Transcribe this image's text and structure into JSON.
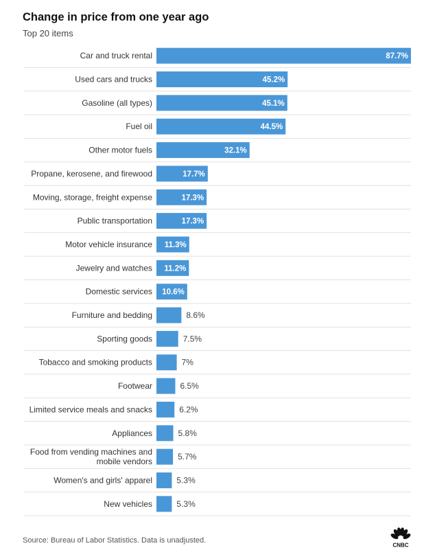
{
  "chart_data": {
    "type": "bar",
    "orientation": "horizontal",
    "title": "Change in price from one year ago",
    "subtitle": "Top 20 items",
    "categories": [
      "Car and truck rental",
      "Used cars and trucks",
      "Gasoline (all types)",
      "Fuel oil",
      "Other motor fuels",
      "Propane, kerosene, and firewood",
      "Moving, storage, freight expense",
      "Public transportation",
      "Motor vehicle insurance",
      "Jewelry and watches",
      "Domestic services",
      "Furniture and bedding",
      "Sporting goods",
      "Tobacco and smoking products",
      "Footwear",
      "Limited service meals and snacks",
      "Appliances",
      "Food from vending machines and mobile vendors",
      "Women's and girls' apparel",
      "New vehicles"
    ],
    "values": [
      87.7,
      45.2,
      45.1,
      44.5,
      32.1,
      17.7,
      17.3,
      17.3,
      11.3,
      11.2,
      10.6,
      8.6,
      7.5,
      7,
      6.5,
      6.2,
      5.8,
      5.7,
      5.3,
      5.3
    ],
    "value_labels": [
      "87.7%",
      "45.2%",
      "45.1%",
      "44.5%",
      "32.1%",
      "17.7%",
      "17.3%",
      "17.3%",
      "11.3%",
      "11.2%",
      "10.6%",
      "8.6%",
      "7.5%",
      "7%",
      "6.5%",
      "6.2%",
      "5.8%",
      "5.7%",
      "5.3%",
      "5.3%"
    ],
    "xlim": [
      0,
      87.7
    ],
    "bar_color": "#4a97d8",
    "grid": true
  },
  "footer": {
    "source": "Source: Bureau of Labor Statistics. Data is unadjusted."
  },
  "logo": {
    "icon": "cnbc-peacock-logo",
    "text": "CNBC"
  }
}
